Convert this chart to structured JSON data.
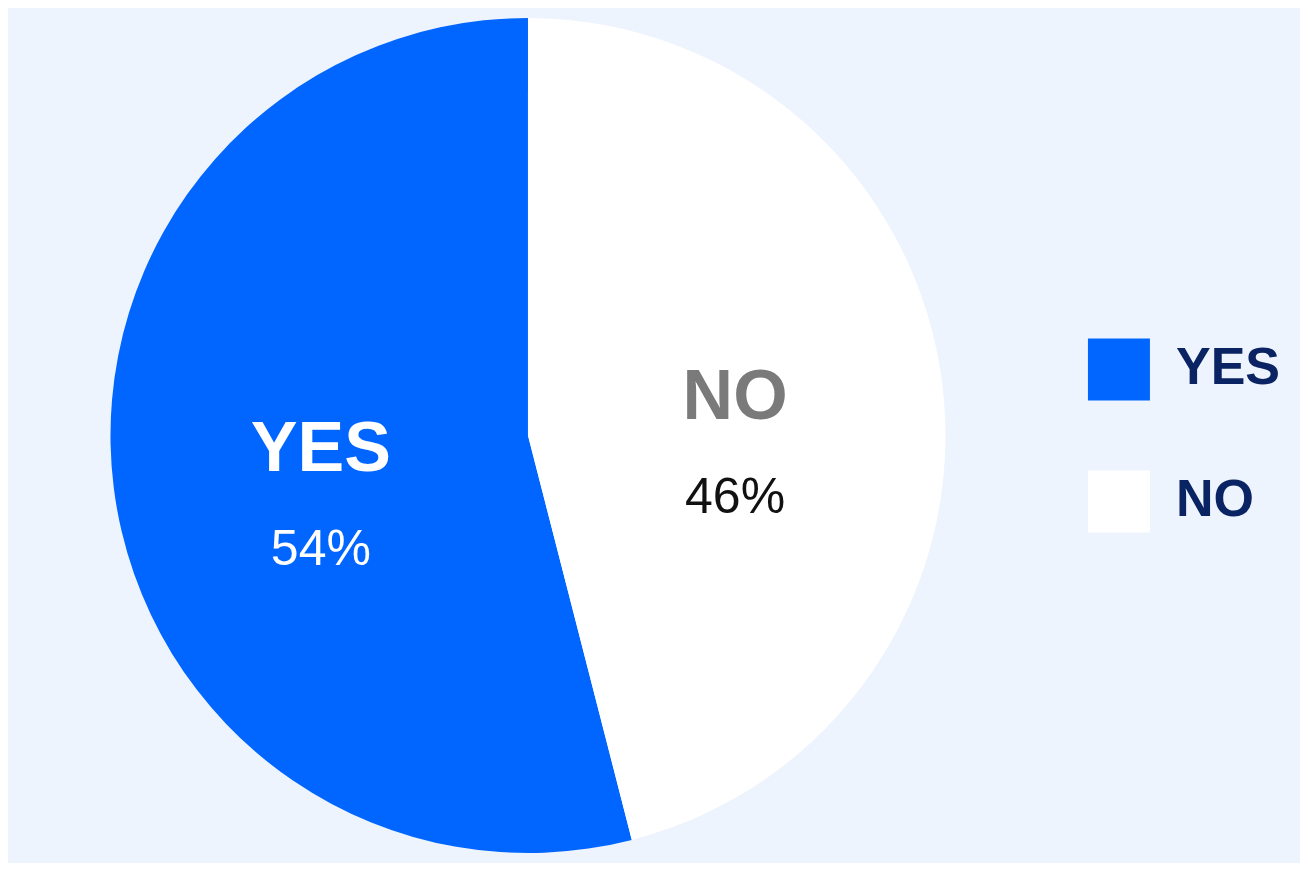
{
  "chart_data": {
    "type": "pie",
    "categories": [
      "YES",
      "NO"
    ],
    "values": [
      54,
      46
    ],
    "colors": [
      "#0066ff",
      "#ffffff"
    ],
    "value_labels": [
      "54%",
      "46%"
    ],
    "legend": "right"
  }
}
